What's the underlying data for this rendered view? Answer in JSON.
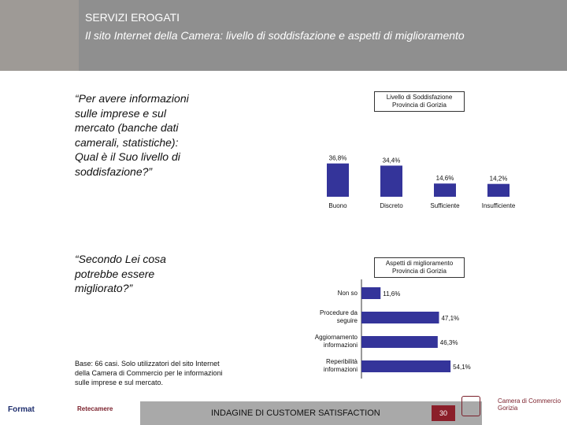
{
  "header": {
    "title": "SERVIZI EROGATI",
    "subtitle": "Il sito Internet della Camera: livello di soddisfazione e aspetti di miglioramento"
  },
  "question_1": "“Per avere informazioni\nsulle imprese e sul\nmercato (banche dati\ncamerali, statistiche):\nQual è il Suo livello di\nsoddisfazione?”",
  "question_2": "“Secondo Lei cosa\npotrebbe essere\nmigliorato?”",
  "base_note": "Base: 66 casi. Solo utilizzatori del sito Internet\ndella Camera di Commercio per le informazioni\nsulle imprese e sul mercato.",
  "footer": {
    "text": "INDAGINE DI CUSTOMER SATISFACTION",
    "page": "30",
    "logo_left": "Format",
    "logo_mid": "Retecamere",
    "logo_right": "Camera di Commercio\nGorizia"
  },
  "colors": {
    "bar": "#34349a",
    "header": "#8f8f8f",
    "page_box": "#8b1f2a"
  },
  "chart_data": [
    {
      "type": "bar",
      "title": "Livello di Soddisfazione\nProvincia di Gorizia",
      "categories": [
        "Buono",
        "Discreto",
        "Sufficiente",
        "Insufficiente"
      ],
      "values": [
        36.8,
        34.4,
        14.6,
        14.2
      ],
      "value_labels": [
        "36,8%",
        "34,4%",
        "14,6%",
        "14,2%"
      ],
      "ylim": [
        0,
        40
      ]
    },
    {
      "type": "bar",
      "orientation": "horizontal",
      "title": "Aspetti di miglioramento\nProvincia di Gorizia",
      "categories": [
        "Non so",
        "Procedure da\nseguire",
        "Aggiornamento\ninformazioni",
        "Reperibilità\ninformazioni"
      ],
      "values": [
        11.6,
        47.1,
        46.3,
        54.1
      ],
      "value_labels": [
        "11,6%",
        "47,1%",
        "46,3%",
        "54,1%"
      ],
      "xlim": [
        0,
        55
      ]
    }
  ]
}
